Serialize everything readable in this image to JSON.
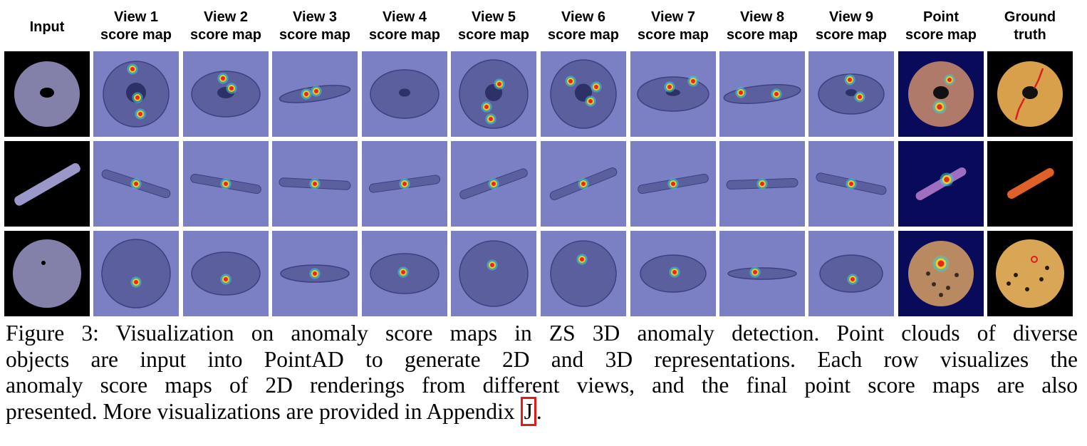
{
  "columns": [
    {
      "line1": "Input",
      "line2": ""
    },
    {
      "line1": "View 1",
      "line2": "score map"
    },
    {
      "line1": "View 2",
      "line2": "score map"
    },
    {
      "line1": "View 3",
      "line2": "score map"
    },
    {
      "line1": "View 4",
      "line2": "score map"
    },
    {
      "line1": "View 5",
      "line2": "score map"
    },
    {
      "line1": "View 6",
      "line2": "score map"
    },
    {
      "line1": "View 7",
      "line2": "score map"
    },
    {
      "line1": "View 8",
      "line2": "score map"
    },
    {
      "line1": "View 9",
      "line2": "score map"
    },
    {
      "line1": "Point",
      "line2": "score map"
    },
    {
      "line1": "Ground",
      "line2": "truth"
    }
  ],
  "rows": [
    "bagel",
    "carrot",
    "cookie"
  ],
  "caption": {
    "line1": "Figure 3: Visualization on anomaly score maps in ZS 3D anomaly detection. Point clouds of diverse",
    "line2": "objects are input into PointAD to generate 2D and 3D representations. Each row visualizes the",
    "line3": "anomaly score maps of 2D renderings from different views, and the final point score maps are also",
    "line4_before": "presented. More visualizations are provided in Appendix ",
    "line4_ref": "J",
    "line4_after": "."
  },
  "colors": {
    "view_bg": "#7b7fc4",
    "object": "#5b5f9e",
    "hot": "#e8261b",
    "warm": "#f5d41f",
    "cool": "#3ad1c8",
    "point_bg": "#0a0a5a",
    "ref_box": "#e31a1c"
  }
}
